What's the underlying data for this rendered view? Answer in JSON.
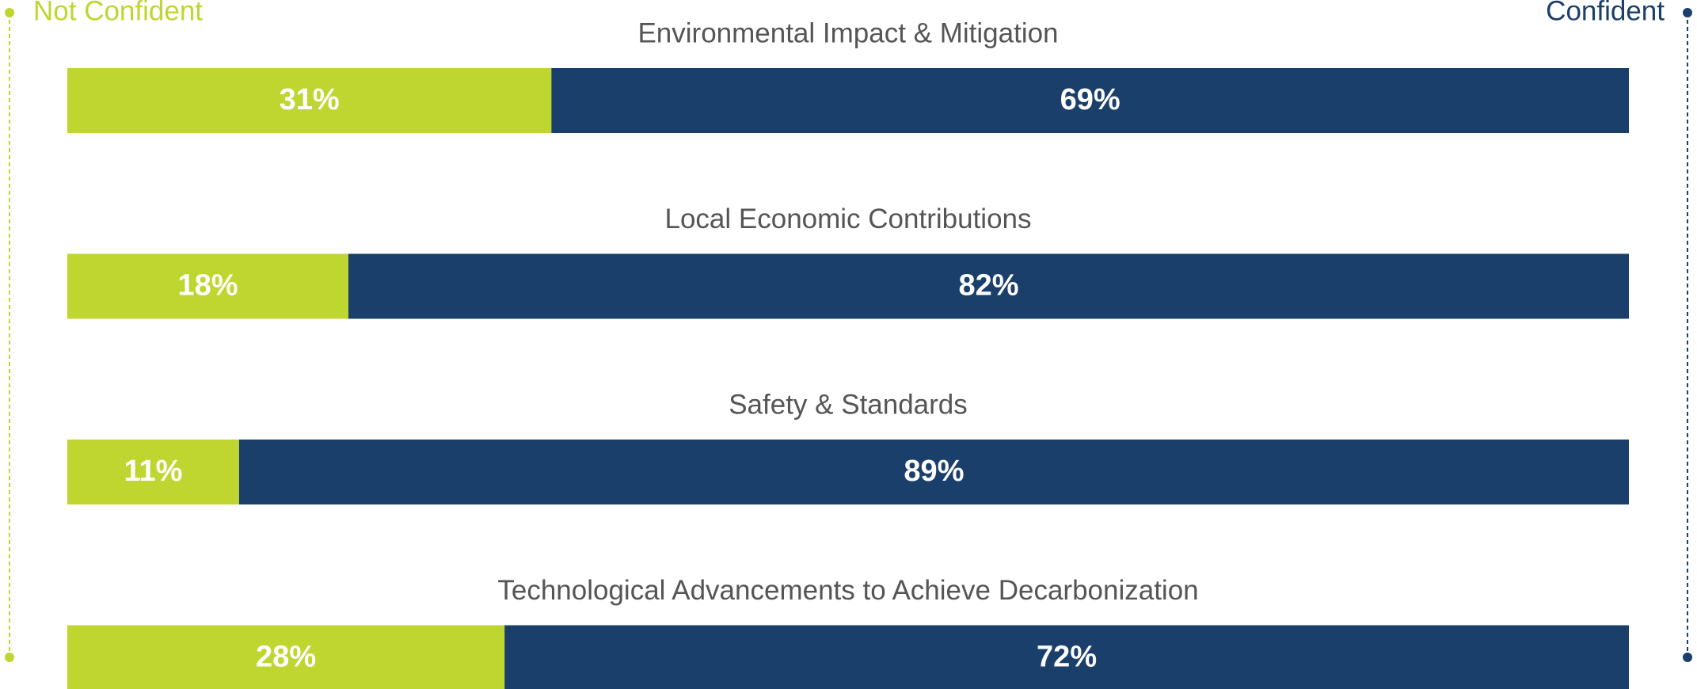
{
  "chart_data": {
    "type": "stacked-bar-horizontal",
    "categories": [
      "Environmental Impact & Mitigation",
      "Local Economic Contributions",
      "Safety & Standards",
      "Technological Advancements to Achieve Decarbonization"
    ],
    "series": [
      {
        "name": "Not Confident",
        "color": "#bfd630",
        "values": [
          31,
          18,
          11,
          28
        ],
        "value_labels": [
          "31%",
          "18%",
          "11%",
          "28%"
        ]
      },
      {
        "name": "Confident",
        "color": "#1a3f6b",
        "values": [
          69,
          82,
          89,
          72
        ],
        "value_labels": [
          "69%",
          "82%",
          "89%",
          "72%"
        ]
      }
    ]
  }
}
